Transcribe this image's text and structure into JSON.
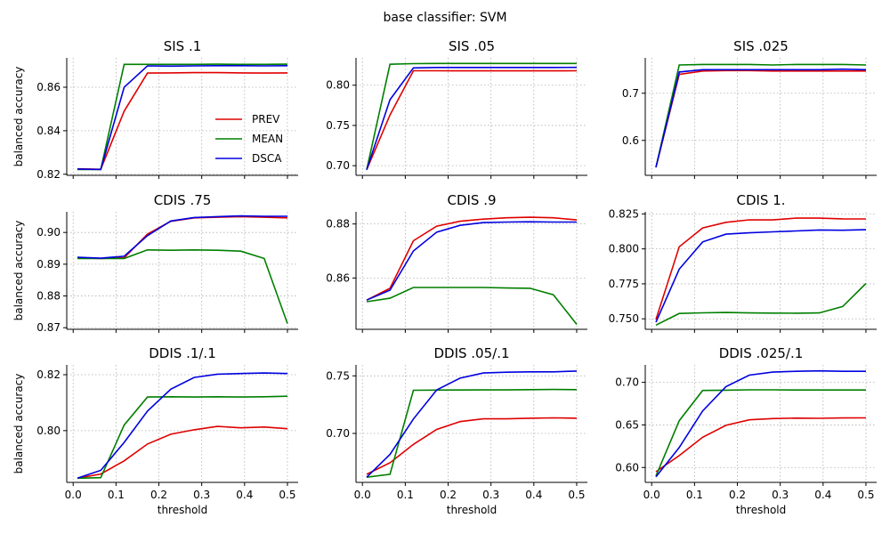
{
  "figure": {
    "suptitle": "base classifier: SVM"
  },
  "colors": {
    "PREV": "#e00000",
    "MEAN": "#007f00",
    "DSCA": "#0000e0",
    "grid": "#b0b0b0"
  },
  "legend": {
    "entries": [
      "PREV",
      "MEAN",
      "DSCA"
    ],
    "placement": "lower-right of first panel"
  },
  "chart_data": [
    {
      "type": "line",
      "title": "SIS .1",
      "xlabel": "",
      "ylabel": "balanced accuracy",
      "xlim": [
        -0.015,
        0.525
      ],
      "ylim": [
        0.8195,
        0.8735
      ],
      "yticks": [
        0.82,
        0.84,
        0.86
      ],
      "ytick_labels": [
        "0.82",
        "0.84",
        "0.86"
      ],
      "xticks": [
        0.0,
        0.1,
        0.2,
        0.3,
        0.4,
        0.5
      ],
      "xtick_labels": [],
      "x": [
        0.01,
        0.0644,
        0.1189,
        0.1733,
        0.2278,
        0.2822,
        0.3367,
        0.3911,
        0.4456,
        0.5
      ],
      "series": [
        {
          "name": "PREV",
          "values": [
            0.8225,
            0.8223,
            0.849,
            0.8665,
            0.8666,
            0.8667,
            0.8667,
            0.8666,
            0.8665,
            0.8666
          ]
        },
        {
          "name": "MEAN",
          "values": [
            0.8222,
            0.8222,
            0.8705,
            0.8705,
            0.8705,
            0.8705,
            0.8706,
            0.8705,
            0.8705,
            0.8706
          ]
        },
        {
          "name": "DSCA",
          "values": [
            0.8224,
            0.8222,
            0.86,
            0.8698,
            0.8697,
            0.8698,
            0.8699,
            0.8699,
            0.8698,
            0.8699
          ]
        }
      ]
    },
    {
      "type": "line",
      "title": "SIS .05",
      "xlabel": "",
      "ylabel": "",
      "xlim": [
        -0.015,
        0.525
      ],
      "ylim": [
        0.688,
        0.834
      ],
      "yticks": [
        0.7,
        0.75,
        0.8
      ],
      "ytick_labels": [
        "0.70",
        "0.75",
        "0.80"
      ],
      "xticks": [
        0.0,
        0.1,
        0.2,
        0.3,
        0.4,
        0.5
      ],
      "xtick_labels": [],
      "x": [
        0.01,
        0.0644,
        0.1189,
        0.1733,
        0.2278,
        0.2822,
        0.3367,
        0.3911,
        0.4456,
        0.5
      ],
      "series": [
        {
          "name": "PREV",
          "values": [
            0.695,
            0.763,
            0.818,
            0.818,
            0.8178,
            0.8178,
            0.8178,
            0.8178,
            0.8178,
            0.818
          ]
        },
        {
          "name": "MEAN",
          "values": [
            0.695,
            0.826,
            0.8268,
            0.827,
            0.827,
            0.827,
            0.827,
            0.827,
            0.827,
            0.827
          ]
        },
        {
          "name": "DSCA",
          "values": [
            0.695,
            0.782,
            0.8215,
            0.822,
            0.822,
            0.822,
            0.822,
            0.822,
            0.822,
            0.8222
          ]
        }
      ]
    },
    {
      "type": "line",
      "title": "SIS .025",
      "xlabel": "",
      "ylabel": "",
      "xlim": [
        -0.015,
        0.525
      ],
      "ylim": [
        0.526,
        0.775
      ],
      "yticks": [
        0.6,
        0.7
      ],
      "ytick_labels": [
        "0.6",
        "0.7"
      ],
      "xticks": [
        0.0,
        0.1,
        0.2,
        0.3,
        0.4,
        0.5
      ],
      "xtick_labels": [],
      "x": [
        0.01,
        0.0644,
        0.1189,
        0.1733,
        0.2278,
        0.2822,
        0.3367,
        0.3911,
        0.4456,
        0.5
      ],
      "series": [
        {
          "name": "PREV",
          "values": [
            0.543,
            0.74,
            0.747,
            0.748,
            0.748,
            0.747,
            0.747,
            0.747,
            0.747,
            0.747
          ]
        },
        {
          "name": "MEAN",
          "values": [
            0.543,
            0.76,
            0.761,
            0.761,
            0.761,
            0.76,
            0.761,
            0.761,
            0.761,
            0.76
          ]
        },
        {
          "name": "DSCA",
          "values": [
            0.543,
            0.745,
            0.75,
            0.75,
            0.75,
            0.75,
            0.75,
            0.75,
            0.751,
            0.75
          ]
        }
      ]
    },
    {
      "type": "line",
      "title": "CDIS .75",
      "xlabel": "",
      "ylabel": "balanced accuracy",
      "xlim": [
        -0.015,
        0.525
      ],
      "ylim": [
        0.8695,
        0.9065
      ],
      "yticks": [
        0.87,
        0.88,
        0.89,
        0.9
      ],
      "ytick_labels": [
        "0.87",
        "0.88",
        "0.89",
        "0.90"
      ],
      "xticks": [
        0.0,
        0.1,
        0.2,
        0.3,
        0.4,
        0.5
      ],
      "xtick_labels": [],
      "x": [
        0.01,
        0.0644,
        0.1189,
        0.1733,
        0.2278,
        0.2822,
        0.3367,
        0.3911,
        0.4456,
        0.5
      ],
      "series": [
        {
          "name": "PREV",
          "values": [
            0.892,
            0.8918,
            0.892,
            0.8995,
            0.9035,
            0.9046,
            0.9048,
            0.905,
            0.9048,
            0.9046
          ]
        },
        {
          "name": "MEAN",
          "values": [
            0.8918,
            0.8918,
            0.8918,
            0.8945,
            0.8944,
            0.8945,
            0.8944,
            0.8941,
            0.8918,
            0.8713
          ]
        },
        {
          "name": "DSCA",
          "values": [
            0.8922,
            0.8919,
            0.8925,
            0.899,
            0.9036,
            0.9047,
            0.905,
            0.9052,
            0.9051,
            0.9051
          ]
        }
      ]
    },
    {
      "type": "line",
      "title": "CDIS .9",
      "xlabel": "",
      "ylabel": "",
      "xlim": [
        -0.015,
        0.525
      ],
      "ylim": [
        0.841,
        0.8845
      ],
      "yticks": [
        0.86,
        0.88
      ],
      "ytick_labels": [
        "0.86",
        "0.88"
      ],
      "xticks": [
        0.0,
        0.1,
        0.2,
        0.3,
        0.4,
        0.5
      ],
      "xtick_labels": [],
      "x": [
        0.01,
        0.0644,
        0.1189,
        0.1733,
        0.2278,
        0.2822,
        0.3367,
        0.3911,
        0.4456,
        0.5
      ],
      "series": [
        {
          "name": "PREV",
          "values": [
            0.8518,
            0.8562,
            0.8738,
            0.8792,
            0.881,
            0.8818,
            0.8823,
            0.8825,
            0.8823,
            0.8815
          ]
        },
        {
          "name": "MEAN",
          "values": [
            0.8512,
            0.8525,
            0.8565,
            0.8565,
            0.8565,
            0.8565,
            0.8563,
            0.8562,
            0.8538,
            0.8428
          ]
        },
        {
          "name": "DSCA",
          "values": [
            0.8518,
            0.8555,
            0.87,
            0.877,
            0.8795,
            0.8805,
            0.8807,
            0.8808,
            0.8807,
            0.8807
          ]
        }
      ]
    },
    {
      "type": "line",
      "title": "CDIS 1.",
      "xlabel": "",
      "ylabel": "",
      "xlim": [
        -0.015,
        0.525
      ],
      "ylim": [
        0.7425,
        0.8265
      ],
      "yticks": [
        0.75,
        0.775,
        0.8,
        0.825
      ],
      "ytick_labels": [
        "0.750",
        "0.775",
        "0.800",
        "0.825"
      ],
      "xticks": [
        0.0,
        0.1,
        0.2,
        0.3,
        0.4,
        0.5
      ],
      "xtick_labels": [],
      "x": [
        0.01,
        0.0644,
        0.1189,
        0.1733,
        0.2278,
        0.2822,
        0.3367,
        0.3911,
        0.4456,
        0.5
      ],
      "series": [
        {
          "name": "PREV",
          "values": [
            0.7495,
            0.8015,
            0.815,
            0.819,
            0.8208,
            0.8207,
            0.822,
            0.822,
            0.8215,
            0.8214
          ]
        },
        {
          "name": "MEAN",
          "values": [
            0.7455,
            0.7538,
            0.7543,
            0.7545,
            0.7542,
            0.7541,
            0.754,
            0.7542,
            0.7588,
            0.7753
          ]
        },
        {
          "name": "DSCA",
          "values": [
            0.7475,
            0.7855,
            0.805,
            0.8105,
            0.8115,
            0.8122,
            0.8128,
            0.8135,
            0.8133,
            0.8137
          ]
        }
      ]
    },
    {
      "type": "line",
      "title": "DDIS .1/.1",
      "xlabel": "threshold",
      "ylabel": "balanced accuracy",
      "xlim": [
        -0.015,
        0.525
      ],
      "ylim": [
        0.7815,
        0.8235
      ],
      "yticks": [
        0.8,
        0.82
      ],
      "ytick_labels": [
        "0.80",
        "0.82"
      ],
      "xticks": [
        0.0,
        0.1,
        0.2,
        0.3,
        0.4,
        0.5
      ],
      "xtick_labels": [
        "0.0",
        "0.1",
        "0.2",
        "0.3",
        "0.4",
        "0.5"
      ],
      "x": [
        0.01,
        0.0644,
        0.1189,
        0.1733,
        0.2278,
        0.2822,
        0.3367,
        0.3911,
        0.4456,
        0.5
      ],
      "series": [
        {
          "name": "PREV",
          "values": [
            0.783,
            0.7845,
            0.7892,
            0.7952,
            0.7987,
            0.8003,
            0.8015,
            0.801,
            0.8013,
            0.8007
          ]
        },
        {
          "name": "MEAN",
          "values": [
            0.783,
            0.7832,
            0.802,
            0.812,
            0.8121,
            0.812,
            0.8121,
            0.812,
            0.8121,
            0.8123
          ]
        },
        {
          "name": "DSCA",
          "values": [
            0.783,
            0.7858,
            0.7958,
            0.807,
            0.8148,
            0.819,
            0.8202,
            0.8204,
            0.8206,
            0.8204
          ]
        }
      ]
    },
    {
      "type": "line",
      "title": "DDIS .05/.1",
      "xlabel": "threshold",
      "ylabel": "",
      "xlim": [
        -0.015,
        0.525
      ],
      "ylim": [
        0.6575,
        0.7595
      ],
      "yticks": [
        0.7,
        0.75
      ],
      "ytick_labels": [
        "0.70",
        "0.75"
      ],
      "xticks": [
        0.0,
        0.1,
        0.2,
        0.3,
        0.4,
        0.5
      ],
      "xtick_labels": [
        "0.0",
        "0.1",
        "0.2",
        "0.3",
        "0.4",
        "0.5"
      ],
      "x": [
        0.01,
        0.0644,
        0.1189,
        0.1733,
        0.2278,
        0.2822,
        0.3367,
        0.3911,
        0.4456,
        0.5
      ],
      "series": [
        {
          "name": "PREV",
          "values": [
            0.6645,
            0.6745,
            0.6905,
            0.7035,
            0.7103,
            0.7127,
            0.7127,
            0.7132,
            0.7135,
            0.7132
          ]
        },
        {
          "name": "MEAN",
          "values": [
            0.662,
            0.6645,
            0.7375,
            0.7376,
            0.7377,
            0.7378,
            0.7378,
            0.738,
            0.7382,
            0.738
          ]
        },
        {
          "name": "DSCA",
          "values": [
            0.662,
            0.6818,
            0.7125,
            0.7378,
            0.748,
            0.7525,
            0.7532,
            0.7535,
            0.7535,
            0.7542
          ]
        }
      ]
    },
    {
      "type": "line",
      "title": "DDIS .025/.1",
      "xlabel": "threshold",
      "ylabel": "",
      "xlim": [
        -0.015,
        0.525
      ],
      "ylim": [
        0.5825,
        0.7205
      ],
      "yticks": [
        0.6,
        0.65,
        0.7
      ],
      "ytick_labels": [
        "0.60",
        "0.65",
        "0.70"
      ],
      "xticks": [
        0.0,
        0.1,
        0.2,
        0.3,
        0.4,
        0.5
      ],
      "xtick_labels": [
        "0.0",
        "0.1",
        "0.2",
        "0.3",
        "0.4",
        "0.5"
      ],
      "x": [
        0.01,
        0.0644,
        0.1189,
        0.1733,
        0.2278,
        0.2822,
        0.3367,
        0.3911,
        0.4456,
        0.5
      ],
      "series": [
        {
          "name": "PREV",
          "values": [
            0.595,
            0.614,
            0.6355,
            0.6495,
            0.656,
            0.6575,
            0.658,
            0.6578,
            0.6582,
            0.6583
          ]
        },
        {
          "name": "MEAN",
          "values": [
            0.59,
            0.655,
            0.6905,
            0.6908,
            0.6912,
            0.6912,
            0.691,
            0.691,
            0.691,
            0.691
          ]
        },
        {
          "name": "DSCA",
          "values": [
            0.589,
            0.6235,
            0.6665,
            0.695,
            0.7085,
            0.712,
            0.713,
            0.7135,
            0.713,
            0.713
          ]
        }
      ]
    }
  ]
}
